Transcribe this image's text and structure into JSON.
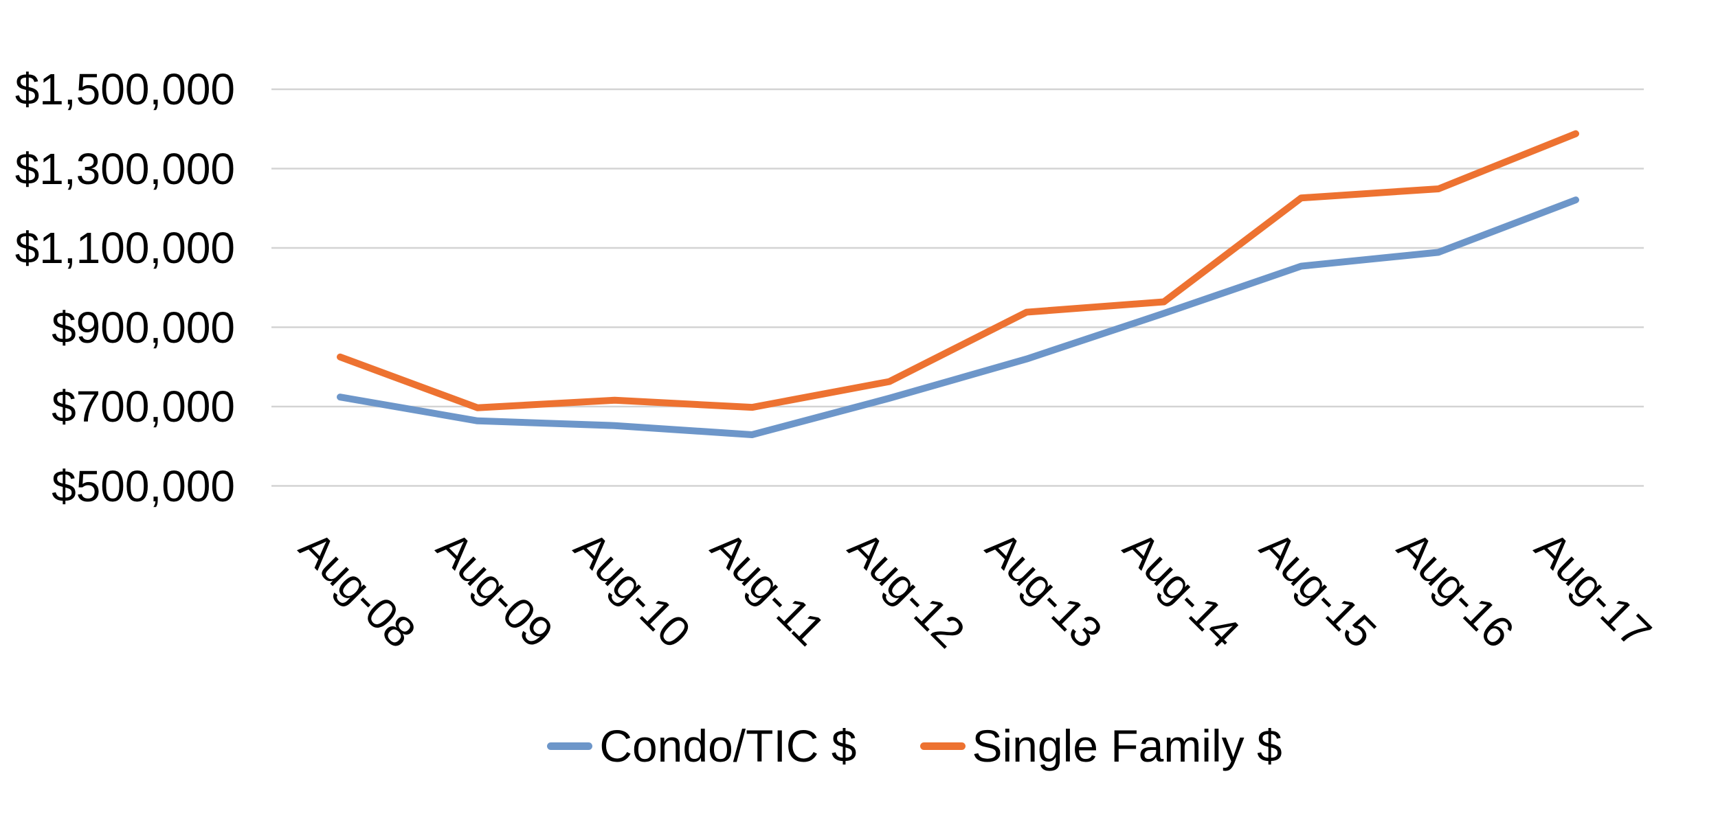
{
  "chart_data": {
    "type": "line",
    "title": "",
    "categories": [
      "Aug-08",
      "Aug-09",
      "Aug-10",
      "Aug-11",
      "Aug-12",
      "Aug-13",
      "Aug-14",
      "Aug-15",
      "Aug-16",
      "Aug-17"
    ],
    "series": [
      {
        "name": "Condo/TIC $",
        "color": "#6D96C9",
        "values": [
          724000,
          664000,
          652000,
          629000,
          721000,
          820000,
          935000,
          1054000,
          1089000,
          1221000
        ]
      },
      {
        "name": "Single Family $",
        "color": "#ED7231",
        "values": [
          825000,
          697000,
          716000,
          698000,
          763000,
          938000,
          964000,
          1226000,
          1249000,
          1388000
        ]
      }
    ],
    "y_axis": {
      "tick_labels": [
        "$1,500,000",
        "$1,300,000",
        "$1,100,000",
        "$900,000",
        "$700,000",
        "$500,000"
      ],
      "tick_values": [
        1500000,
        1300000,
        1100000,
        900000,
        700000,
        500000
      ],
      "min": 500000,
      "max": 1500000,
      "tick_step": 200000
    },
    "x_axis": {
      "label_rotation_deg": 45
    },
    "legend": {
      "position": "bottom"
    },
    "grid": {
      "horizontal": true,
      "vertical": false,
      "color": "#D3D3D3"
    },
    "background": "#FFFFFF",
    "text_color": "#000000"
  }
}
